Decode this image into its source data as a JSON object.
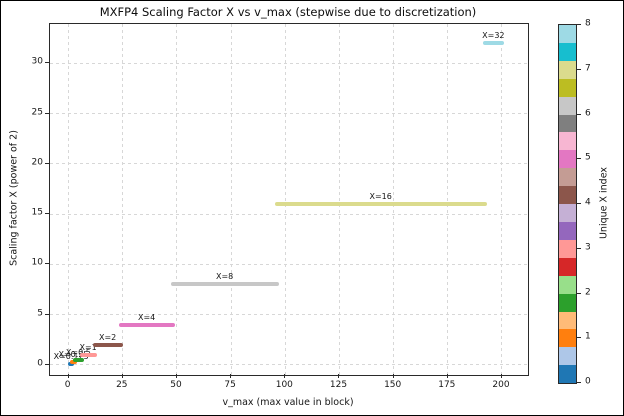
{
  "title": "MXFP4 Scaling Factor X vs v_max (stepwise due to discretization)",
  "chart_data": {
    "type": "scatter",
    "title": "MXFP4 Scaling Factor X vs v_max (stepwise due to discretization)",
    "xlabel": "v_max (max value in block)",
    "ylabel": "Scaling factor X (power of 2)",
    "xlim": [
      -8.6,
      212.0
    ],
    "ylim": [
      -1.0,
      33.9
    ],
    "x_ticks": [
      0,
      25,
      50,
      75,
      100,
      125,
      150,
      175,
      200
    ],
    "y_ticks": [
      0,
      5,
      10,
      15,
      20,
      25,
      30
    ],
    "grid": true,
    "grid_style": "dashed",
    "legend_position": "none",
    "series_note": "horizontal stepwise runs of scatter points; y equals scaling factor X, x spans the v_max interval mapped to that X",
    "segments": [
      {
        "index": 0,
        "label": "X=0.125",
        "y": 0.125,
        "x_start": 0.8,
        "x_end": 1.5,
        "color": "#1f77b4"
      },
      {
        "index": 1,
        "label": "X=0.25",
        "y": 0.25,
        "x_start": 1.5,
        "x_end": 3.0,
        "color": "#ff7f0e"
      },
      {
        "index": 2,
        "label": "X=0.5",
        "y": 0.5,
        "x_start": 3.0,
        "x_end": 6.0,
        "color": "#2ca02c"
      },
      {
        "index": 3,
        "label": "X=1",
        "y": 1,
        "x_start": 6.0,
        "x_end": 12.0,
        "color": "#ff9896"
      },
      {
        "index": 4,
        "label": "X=2",
        "y": 2,
        "x_start": 12.0,
        "x_end": 24.0,
        "color": "#8c564b"
      },
      {
        "index": 5,
        "label": "X=4",
        "y": 4,
        "x_start": 24.0,
        "x_end": 48.0,
        "color": "#e377c2"
      },
      {
        "index": 6,
        "label": "X=8",
        "y": 8,
        "x_start": 48.0,
        "x_end": 96.0,
        "color": "#c7c7c7"
      },
      {
        "index": 7,
        "label": "X=16",
        "y": 16,
        "x_start": 96.0,
        "x_end": 192.0,
        "color": "#dbdb8d"
      },
      {
        "index": 8,
        "label": "X=32",
        "y": 32,
        "x_start": 192.0,
        "x_end": 200.0,
        "color": "#9edae5"
      }
    ],
    "colorbar": {
      "label": "Unique X index",
      "ticks": [
        0,
        1,
        2,
        3,
        4,
        5,
        6,
        7,
        8
      ],
      "min": 0,
      "max": 8,
      "cmap_name": "tab20",
      "bands_bottom_to_top": [
        "#1f77b4",
        "#aec7e8",
        "#ff7f0e",
        "#ffbb78",
        "#2ca02c",
        "#98df8a",
        "#d62728",
        "#ff9896",
        "#9467bd",
        "#c5b0d5",
        "#8c564b",
        "#c49c94",
        "#e377c2",
        "#f7b6d2",
        "#7f7f7f",
        "#c7c7c7",
        "#bcbd22",
        "#dbdb8d",
        "#17becf",
        "#9edae5"
      ]
    }
  }
}
